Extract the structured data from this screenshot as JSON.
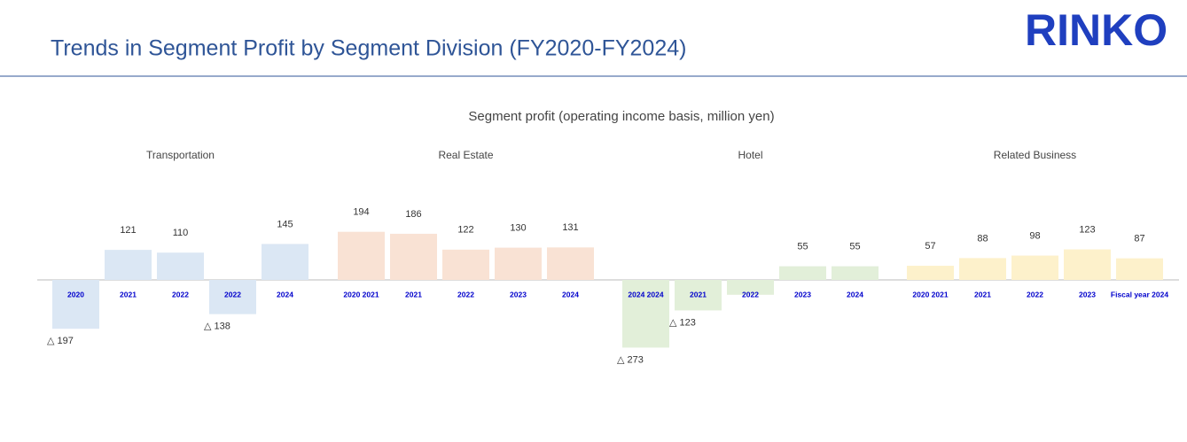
{
  "title": "Trends in Segment Profit by Segment Division (FY2020-FY2024)",
  "logo": "RINKO",
  "subtitle": "Segment profit (operating income basis, million yen)",
  "chart_data": [
    {
      "type": "bar",
      "title": "Transportation",
      "color": "#dbe7f4",
      "categories": [
        "2020",
        "2021",
        "2022",
        "2022",
        "2024"
      ],
      "values": [
        -197,
        121,
        110,
        -138,
        145
      ],
      "value_labels": [
        "△ 197",
        "121",
        "110",
        "△ 138",
        "145"
      ]
    },
    {
      "type": "bar",
      "title": "Real Estate",
      "color": "#f9e2d4",
      "categories": [
        "2020 2021",
        "2021",
        "2022",
        "2023",
        "2024"
      ],
      "values": [
        194,
        186,
        122,
        130,
        131
      ],
      "value_labels": [
        "194",
        "186",
        "122",
        "130",
        "131"
      ]
    },
    {
      "type": "bar",
      "title": "Hotel",
      "color": "#e2efd9",
      "categories": [
        "2024 2024",
        "2021",
        "2022",
        "2023",
        "2024"
      ],
      "values": [
        -273,
        -123,
        -60,
        55,
        55
      ],
      "value_labels": [
        "△ 273",
        "△ 123",
        null,
        "55",
        "55"
      ]
    },
    {
      "type": "bar",
      "title": "Related Business",
      "color": "#fdf1cb",
      "categories": [
        "2020 2021",
        "2021",
        "2022",
        "2023",
        "Fiscal year 2024"
      ],
      "values": [
        57,
        88,
        98,
        123,
        87
      ],
      "value_labels": [
        "57",
        "88",
        "98",
        "123",
        "87"
      ]
    }
  ]
}
